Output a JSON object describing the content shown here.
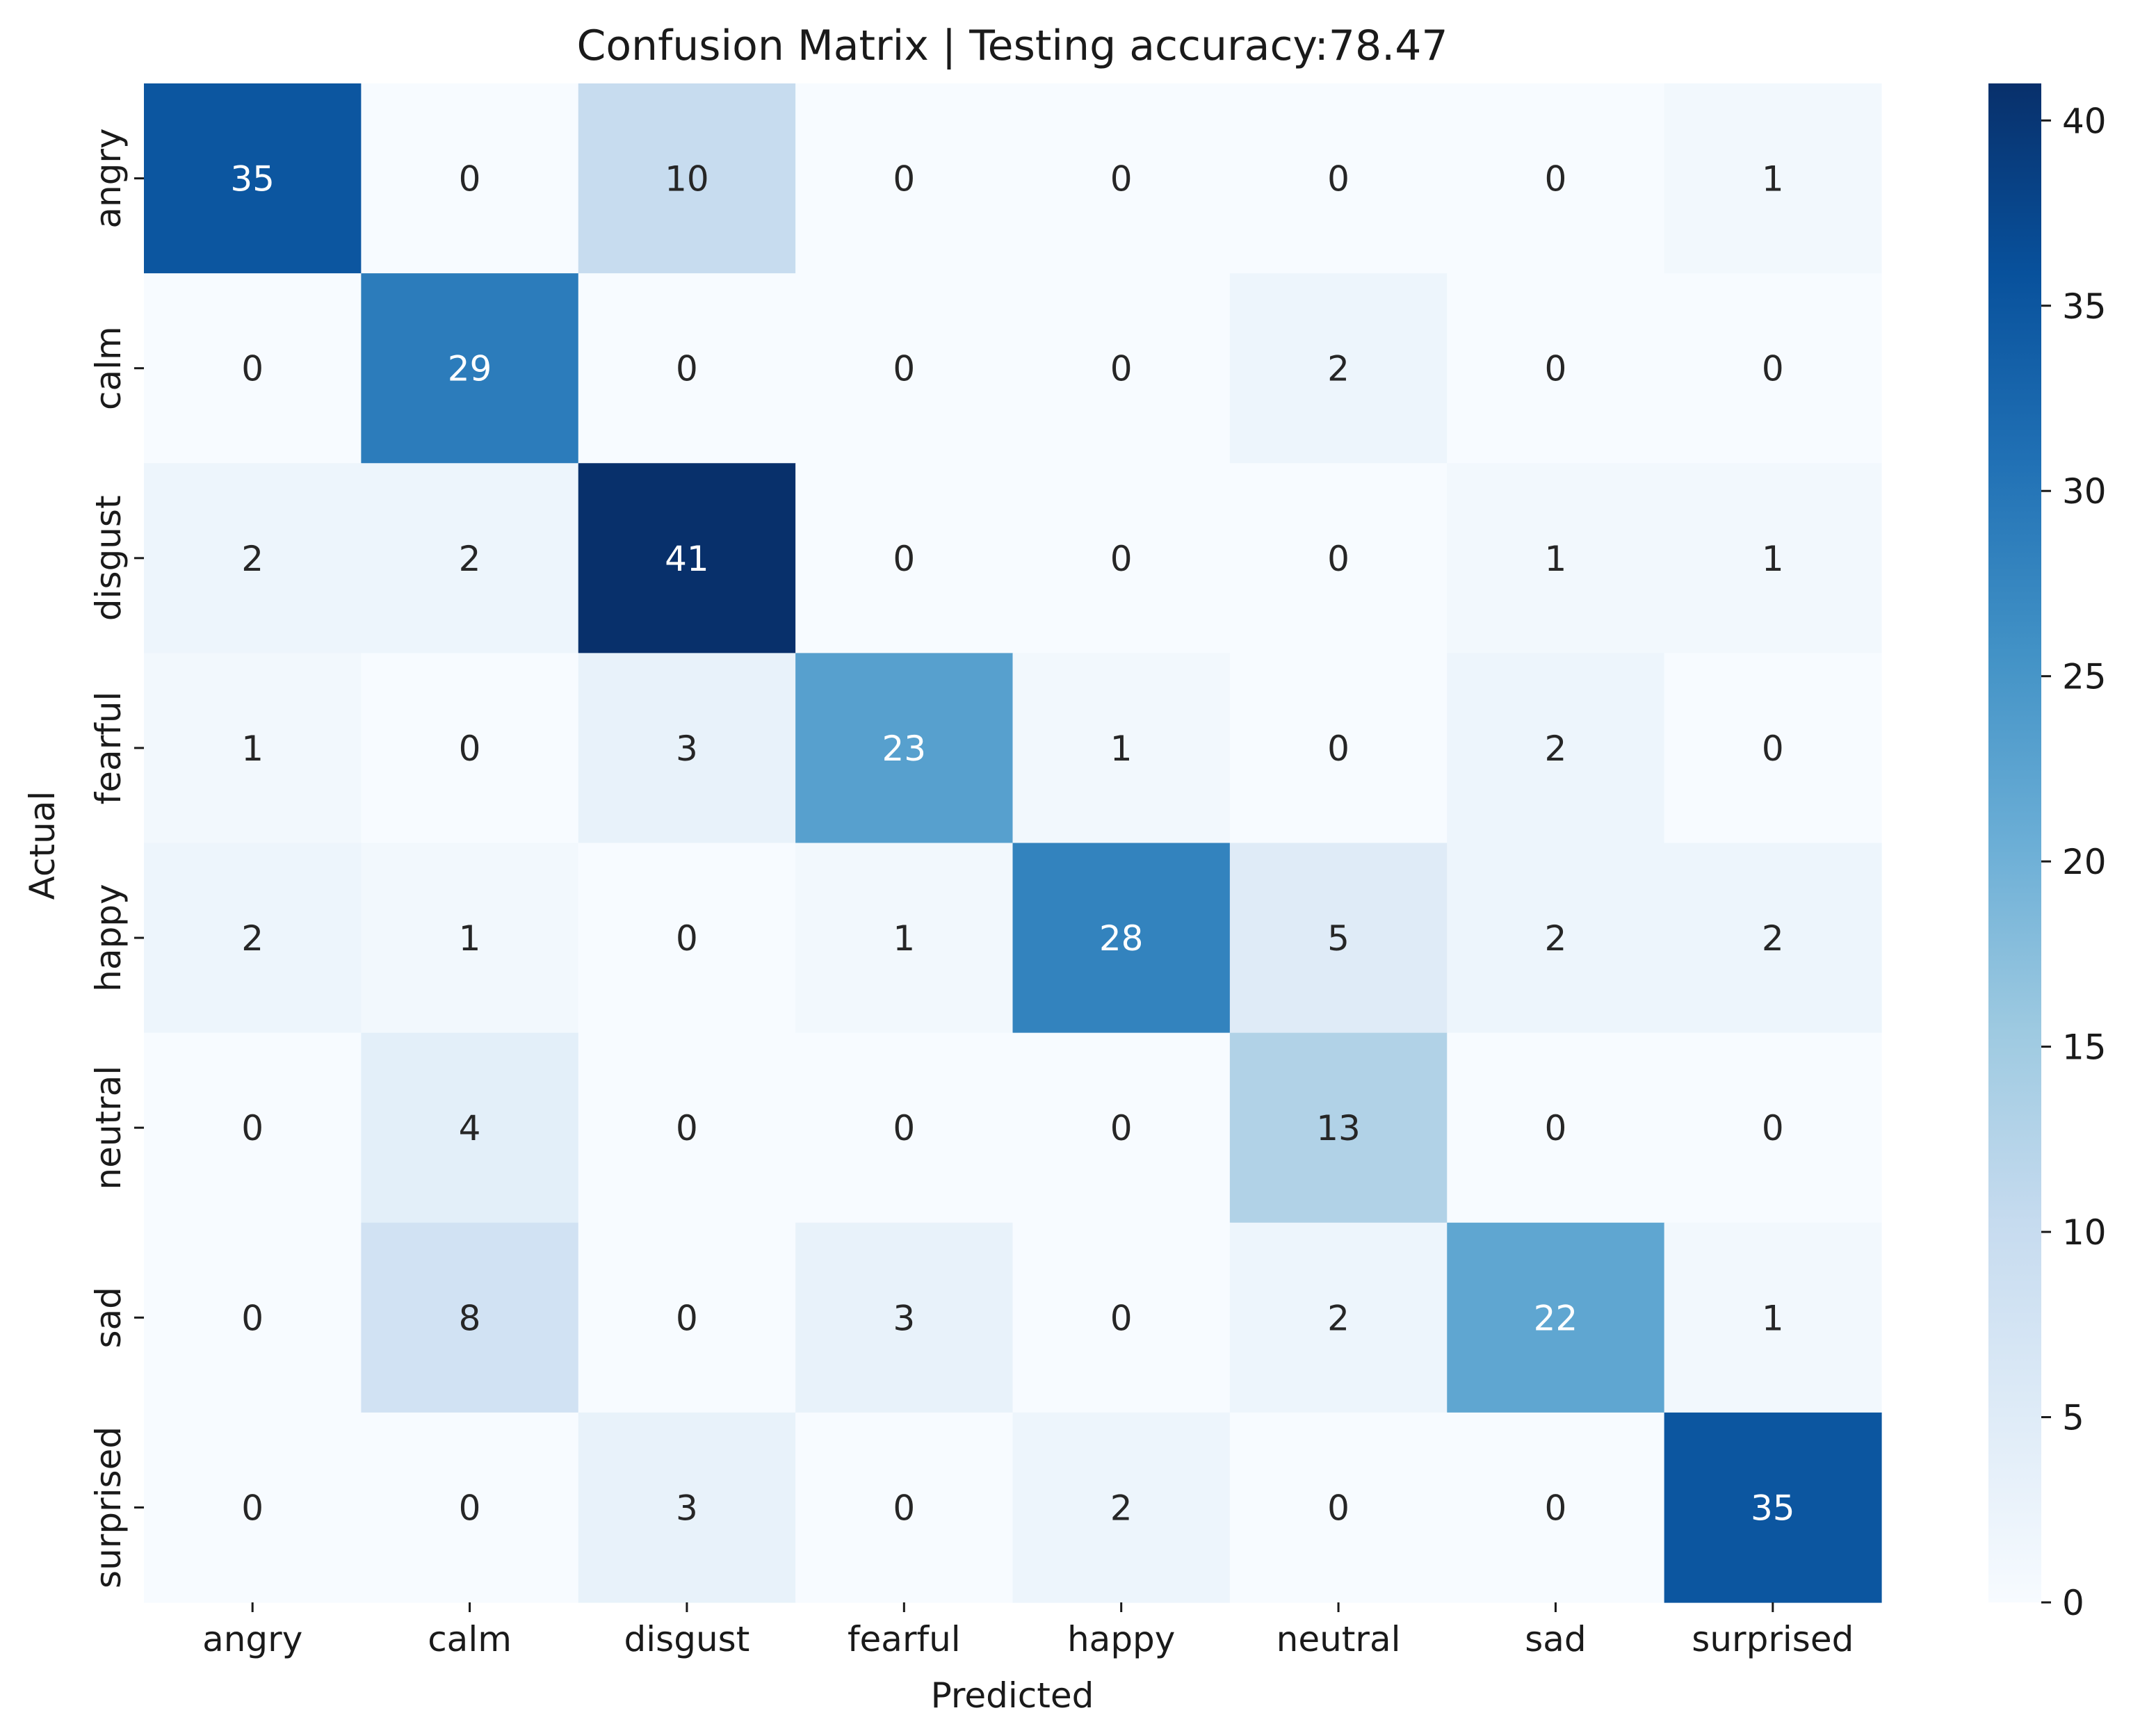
{
  "chart_data": {
    "type": "heatmap",
    "title": "Confusion Matrix | Testing accuracy:78.47",
    "xlabel": "Predicted",
    "ylabel": "Actual",
    "x_categories": [
      "angry",
      "calm",
      "disgust",
      "fearful",
      "happy",
      "neutral",
      "sad",
      "surprised"
    ],
    "y_categories": [
      "angry",
      "calm",
      "disgust",
      "fearful",
      "happy",
      "neutral",
      "sad",
      "surprised"
    ],
    "values": [
      [
        35,
        0,
        10,
        0,
        0,
        0,
        0,
        1
      ],
      [
        0,
        29,
        0,
        0,
        0,
        2,
        0,
        0
      ],
      [
        2,
        2,
        41,
        0,
        0,
        0,
        1,
        1
      ],
      [
        1,
        0,
        3,
        23,
        1,
        0,
        2,
        0
      ],
      [
        2,
        1,
        0,
        1,
        28,
        5,
        2,
        2
      ],
      [
        0,
        4,
        0,
        0,
        0,
        13,
        0,
        0
      ],
      [
        0,
        8,
        0,
        3,
        0,
        2,
        22,
        1
      ],
      [
        0,
        0,
        3,
        0,
        2,
        0,
        0,
        35
      ]
    ],
    "colorscale": "Blues",
    "color_range": [
      0,
      41
    ],
    "colorbar_ticks": [
      0,
      5,
      10,
      15,
      20,
      25,
      30,
      35,
      40
    ]
  }
}
